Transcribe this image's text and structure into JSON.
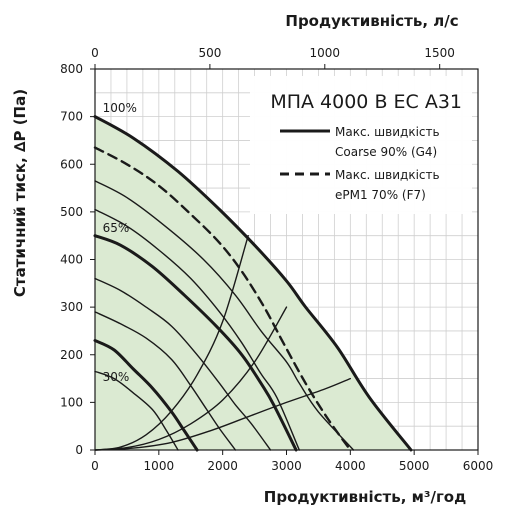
{
  "chart_data": {
    "type": "line",
    "title": "МПА 4000 В ЕС А31",
    "xlabel": "Продуктивність, м³/год",
    "ylabel": "Статичний тиск, ∆Р (Па)",
    "x2label": "Продуктивність, л/с",
    "xlim": [
      0,
      6000
    ],
    "ylim": [
      0,
      800
    ],
    "x2lim": [
      0,
      1666.7
    ],
    "xticks": [
      "0",
      "1000",
      "2000",
      "3000",
      "4000",
      "5000",
      "6000"
    ],
    "yticks": [
      "0",
      "100",
      "200",
      "300",
      "400",
      "500",
      "600",
      "700",
      "800"
    ],
    "x2ticks": [
      "0",
      "500",
      "1000",
      "1500"
    ],
    "grid": true,
    "legend": [
      {
        "text_line1": "Макс. швидкість",
        "text_line2": "Coarse 90% (G4)",
        "style": "solid"
      },
      {
        "text_line1": "Макс. швидкість",
        "text_line2": "ePM1 70% (F7)",
        "style": "dashed"
      }
    ],
    "envelope": {
      "x": [
        0,
        0,
        600,
        1300,
        1950,
        2500,
        3000,
        3300,
        3800,
        4300,
        4950,
        4950
      ],
      "y": [
        0,
        700,
        655,
        585,
        505,
        430,
        355,
        300,
        215,
        110,
        0,
        0
      ]
    },
    "series": [
      {
        "name": "100%",
        "emphasis": true,
        "style": "solid",
        "x": [
          0,
          600,
          1300,
          1950,
          2500,
          3000,
          3300,
          3800,
          4300,
          4950
        ],
        "y": [
          700,
          655,
          585,
          505,
          430,
          355,
          300,
          215,
          110,
          0
        ]
      },
      {
        "emphasis": false,
        "style": "solid",
        "x": [
          0,
          500,
          1100,
          1700,
          2200,
          2600,
          3000,
          3200,
          3500,
          4050
        ],
        "y": [
          565,
          530,
          470,
          400,
          325,
          250,
          185,
          140,
          80,
          0
        ]
      },
      {
        "emphasis": false,
        "style": "solid",
        "x": [
          0,
          500,
          1000,
          1500,
          1950,
          2300,
          2600,
          2850,
          3200
        ],
        "y": [
          505,
          470,
          420,
          360,
          290,
          225,
          160,
          110,
          0
        ]
      },
      {
        "emphasis": true,
        "style": "solid",
        "x": [
          0,
          400,
          900,
          1400,
          1900,
          2300,
          2600,
          2800,
          3150
        ],
        "y": [
          450,
          430,
          385,
          325,
          260,
          200,
          140,
          95,
          0
        ]
      },
      {
        "emphasis": false,
        "style": "solid",
        "x": [
          0,
          400,
          800,
          1200,
          1600,
          1950,
          2200,
          2450,
          2750
        ],
        "y": [
          360,
          335,
          300,
          260,
          200,
          140,
          95,
          55,
          0
        ]
      },
      {
        "emphasis": false,
        "style": "solid",
        "x": [
          0,
          400,
          800,
          1200,
          1500,
          1750,
          1950,
          2200
        ],
        "y": [
          290,
          265,
          235,
          190,
          135,
          85,
          45,
          0
        ]
      },
      {
        "emphasis": true,
        "style": "solid",
        "x": [
          0,
          300,
          600,
          900,
          1200,
          1400,
          1600
        ],
        "y": [
          230,
          210,
          170,
          130,
          80,
          40,
          0
        ]
      },
      {
        "emphasis": false,
        "style": "solid",
        "x": [
          0,
          300,
          600,
          900,
          1100,
          1300
        ],
        "y": [
          165,
          150,
          120,
          85,
          45,
          0
        ]
      },
      {
        "name": "ePM1 70% (F7)",
        "emphasis": false,
        "style": "dashed",
        "x": [
          0,
          500,
          1000,
          1500,
          1950,
          2300,
          2650,
          2950,
          3300,
          3650,
          4000
        ],
        "y": [
          635,
          600,
          555,
          495,
          435,
          375,
          300,
          225,
          140,
          65,
          0
        ]
      },
      {
        "name": "system-1",
        "emphasis": false,
        "style": "solid",
        "x": [
          0,
          400,
          800,
          1200,
          1600,
          2000,
          2400
        ],
        "y": [
          0,
          6,
          32,
          82,
          158,
          270,
          450
        ]
      },
      {
        "name": "system-2",
        "emphasis": false,
        "style": "solid",
        "x": [
          0,
          500,
          1000,
          1500,
          2000,
          2500,
          3000
        ],
        "y": [
          0,
          5,
          22,
          55,
          105,
          185,
          300
        ]
      },
      {
        "name": "system-3",
        "emphasis": false,
        "style": "solid",
        "x": [
          0,
          600,
          1200,
          1800,
          2400,
          3000,
          3600,
          4000
        ],
        "y": [
          0,
          4,
          16,
          40,
          70,
          100,
          128,
          150
        ]
      }
    ],
    "annotations": [
      {
        "text": "100%",
        "x": 120,
        "y": 710
      },
      {
        "text": "65%",
        "x": 120,
        "y": 458
      },
      {
        "text": "30%",
        "x": 120,
        "y": 145
      }
    ]
  }
}
